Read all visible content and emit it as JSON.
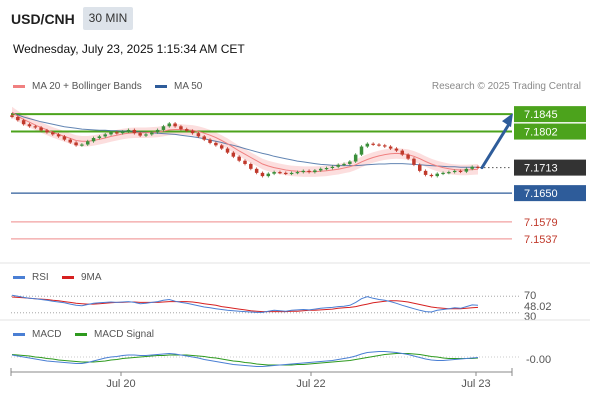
{
  "header": {
    "symbol": "USD/CNH",
    "timeframe": "30 MIN",
    "datetime": "Wednesday, July 23, 2025 1:15:34 AM CET"
  },
  "legend_main": {
    "ma20_label": "MA 20 + Bollinger Bands",
    "ma50_label": "MA 50",
    "ma20_color": "#f08080",
    "ma50_color": "#2e5c9a",
    "research": "Research © 2025 Trading Central"
  },
  "legend_rsi": {
    "rsi_label": "RSI",
    "ma_label": "9MA",
    "rsi_color": "#4a7fd4",
    "ma_color": "#d62020"
  },
  "legend_macd": {
    "macd_label": "MACD",
    "signal_label": "MACD Signal",
    "macd_color": "#4a7fd4",
    "signal_color": "#2e9a1e"
  },
  "colors": {
    "resistance": "#4ca31c",
    "support": "#2e5c9a",
    "weak_support": "#f2a0a0",
    "current": "#333333",
    "up_candle": "#3a8f3a",
    "down_candle": "#c0392b",
    "band_fill": "#fbd8d8"
  },
  "chart_data": [
    {
      "type": "candlestick",
      "name": "price",
      "y_range": [
        7.148,
        7.187
      ],
      "current_price": "7.1713",
      "levels": [
        {
          "value": 7.1845,
          "label": "7.1845",
          "kind": "resistance"
        },
        {
          "value": 7.1802,
          "label": "7.1802",
          "kind": "resistance"
        },
        {
          "value": 7.165,
          "label": "7.1650",
          "kind": "support"
        },
        {
          "value": 7.1579,
          "label": "7.1579",
          "kind": "weak"
        },
        {
          "value": 7.1537,
          "label": "7.1537",
          "kind": "weak"
        }
      ],
      "close": [
        7.1838,
        7.183,
        7.182,
        7.1815,
        7.1812,
        7.1805,
        7.18,
        7.1795,
        7.179,
        7.1782,
        7.1775,
        7.1768,
        7.177,
        7.1778,
        7.1786,
        7.179,
        7.1795,
        7.18,
        7.1798,
        7.1802,
        7.1806,
        7.1798,
        7.1792,
        7.1795,
        7.18,
        7.1806,
        7.1815,
        7.1822,
        7.1815,
        7.1808,
        7.1804,
        7.1798,
        7.179,
        7.1782,
        7.1774,
        7.1768,
        7.176,
        7.175,
        7.174,
        7.173,
        7.1722,
        7.171,
        7.17,
        7.1692,
        7.1698,
        7.1702,
        7.17,
        7.1698,
        7.17,
        7.1702,
        7.1705,
        7.1702,
        7.1706,
        7.171,
        7.1712,
        7.1715,
        7.172,
        7.1722,
        7.1728,
        7.1745,
        7.1765,
        7.1772,
        7.177,
        7.1768,
        7.1765,
        7.176,
        7.1755,
        7.1745,
        7.1735,
        7.172,
        7.1705,
        7.1695,
        7.1692,
        7.1698,
        7.17,
        7.1702,
        7.1705,
        7.1703,
        7.171,
        7.1715,
        7.1713
      ],
      "ma20": [
        7.185,
        7.184,
        7.1832,
        7.1825,
        7.1818,
        7.1812,
        7.1806,
        7.18,
        7.1795,
        7.179,
        7.1785,
        7.178,
        7.1778,
        7.1778,
        7.178,
        7.1783,
        7.1786,
        7.179,
        7.1793,
        7.1796,
        7.1798,
        7.1799,
        7.1799,
        7.1799,
        7.18,
        7.1801,
        7.1803,
        7.1806,
        7.1807,
        7.1807,
        7.1806,
        7.1805,
        7.1802,
        7.1798,
        7.1793,
        7.1787,
        7.178,
        7.1772,
        7.1763,
        7.1754,
        7.1746,
        7.1738,
        7.173,
        7.1722,
        7.1717,
        7.1713,
        7.171,
        7.1707,
        7.1705,
        7.1704,
        7.1703,
        7.1703,
        7.1703,
        7.1704,
        7.1705,
        7.1707,
        7.1709,
        7.1712,
        7.1715,
        7.172,
        7.1727,
        7.1733,
        7.1738,
        7.1742,
        7.1745,
        7.1747,
        7.1748,
        7.1747,
        7.1745,
        7.1741,
        7.1735,
        7.1728,
        7.1722,
        7.1717,
        7.1713,
        7.171,
        7.1708,
        7.1707,
        7.1707,
        7.1708,
        7.1709
      ],
      "ma50": [
        7.1848,
        7.1843,
        7.1838,
        7.1834,
        7.183,
        7.1826,
        7.1823,
        7.182,
        7.1817,
        7.1814,
        7.1812,
        7.181,
        7.1808,
        7.1807,
        7.1806,
        7.1805,
        7.1805,
        7.1804,
        7.1804,
        7.1803,
        7.1803,
        7.1802,
        7.1801,
        7.18,
        7.1799,
        7.1798,
        7.1797,
        7.1796,
        7.1795,
        7.1793,
        7.1791,
        7.1789,
        7.1787,
        7.1784,
        7.1781,
        7.1778,
        7.1775,
        7.1771,
        7.1768,
        7.1764,
        7.176,
        7.1756,
        7.1752,
        7.1748,
        7.1745,
        7.1741,
        7.1738,
        7.1735,
        7.1732,
        7.1729,
        7.1727,
        7.1725,
        7.1723,
        7.1721,
        7.172,
        7.1719,
        7.1718,
        7.1718,
        7.1718,
        7.1718,
        7.1719,
        7.172,
        7.1721,
        7.1722,
        7.1722,
        7.1723,
        7.1723,
        7.1723,
        7.1722,
        7.1721,
        7.172,
        7.1719,
        7.1718,
        7.1717,
        7.1716,
        7.1715,
        7.1715,
        7.1714,
        7.1714,
        7.1714,
        7.1714
      ]
    },
    {
      "type": "line",
      "name": "rsi",
      "y_range": [
        20,
        80
      ],
      "ticks": [
        "70",
        "30"
      ],
      "last_value": "48.02",
      "rsi": [
        72,
        70,
        67,
        65,
        64,
        62,
        60,
        58,
        56,
        54,
        51,
        48,
        47,
        50,
        53,
        54,
        55,
        56,
        55,
        56,
        57,
        55,
        52,
        53,
        55,
        57,
        60,
        62,
        58,
        55,
        53,
        50,
        47,
        44,
        42,
        40,
        38,
        36,
        35,
        34,
        33,
        32,
        31,
        31,
        34,
        36,
        35,
        34,
        36,
        37,
        38,
        37,
        39,
        41,
        42,
        43,
        45,
        46,
        48,
        55,
        64,
        69,
        65,
        62,
        60,
        57,
        53,
        48,
        44,
        40,
        36,
        33,
        32,
        36,
        38,
        40,
        42,
        41,
        45,
        49,
        48
      ],
      "ma9": [
        68,
        67,
        66,
        65,
        64,
        63,
        62,
        60,
        59,
        57,
        55,
        53,
        52,
        51,
        51,
        52,
        53,
        54,
        55,
        55,
        56,
        56,
        55,
        55,
        55,
        55,
        56,
        57,
        57,
        57,
        57,
        56,
        54,
        52,
        50,
        48,
        45,
        43,
        41,
        39,
        37,
        35,
        34,
        33,
        33,
        33,
        33,
        33,
        34,
        34,
        35,
        36,
        36,
        37,
        38,
        39,
        41,
        42,
        43,
        45,
        48,
        51,
        54,
        56,
        58,
        59,
        59,
        58,
        56,
        53,
        50,
        47,
        44,
        42,
        41,
        40,
        40,
        40,
        41,
        42,
        43
      ]
    },
    {
      "type": "line",
      "name": "macd",
      "y_range": [
        -0.0026,
        0.0026
      ],
      "ticks": [
        "-0.00"
      ],
      "macd": [
        0.0004,
        0.0002,
        0.0,
        -0.0002,
        -0.0004,
        -0.0006,
        -0.0008,
        -0.0009,
        -0.001,
        -0.0011,
        -0.0012,
        -0.0013,
        -0.0013,
        -0.0011,
        -0.0008,
        -0.0005,
        -0.0002,
        0.0,
        0.0001,
        0.0003,
        0.0004,
        0.0004,
        0.0003,
        0.0003,
        0.0004,
        0.0005,
        0.0006,
        0.0007,
        0.0006,
        0.0004,
        0.0002,
        0.0,
        -0.0002,
        -0.0005,
        -0.0007,
        -0.0009,
        -0.0011,
        -0.0013,
        -0.0015,
        -0.0016,
        -0.0017,
        -0.0018,
        -0.0019,
        -0.0019,
        -0.0018,
        -0.0017,
        -0.0016,
        -0.0015,
        -0.0014,
        -0.0013,
        -0.0012,
        -0.0011,
        -0.001,
        -0.0009,
        -0.0008,
        -0.0007,
        -0.0005,
        -0.0003,
        -0.0001,
        0.0002,
        0.0006,
        0.0009,
        0.001,
        0.0011,
        0.0011,
        0.001,
        0.0009,
        0.0007,
        0.0005,
        0.0002,
        -0.0001,
        -0.0004,
        -0.0006,
        -0.0007,
        -0.0007,
        -0.0006,
        -0.0005,
        -0.0004,
        -0.0003,
        -0.0002,
        -0.0001
      ],
      "signal": [
        0.0005,
        0.0004,
        0.0003,
        0.0002,
        0.0,
        -0.0001,
        -0.0003,
        -0.0004,
        -0.0006,
        -0.0007,
        -0.0008,
        -0.0009,
        -0.001,
        -0.001,
        -0.001,
        -0.0009,
        -0.0008,
        -0.0006,
        -0.0005,
        -0.0003,
        -0.0002,
        -0.0001,
        0.0,
        0.0001,
        0.0002,
        0.0003,
        0.0003,
        0.0004,
        0.0004,
        0.0004,
        0.0004,
        0.0003,
        0.0002,
        0.0001,
        -0.0001,
        -0.0002,
        -0.0004,
        -0.0006,
        -0.0008,
        -0.0009,
        -0.0011,
        -0.0012,
        -0.0014,
        -0.0015,
        -0.0016,
        -0.0016,
        -0.0016,
        -0.0016,
        -0.0016,
        -0.0015,
        -0.0015,
        -0.0014,
        -0.0013,
        -0.0012,
        -0.0011,
        -0.001,
        -0.0009,
        -0.0008,
        -0.0007,
        -0.0005,
        -0.0003,
        -0.0001,
        0.0001,
        0.0003,
        0.0005,
        0.0006,
        0.0007,
        0.0007,
        0.0007,
        0.0006,
        0.0005,
        0.0003,
        0.0001,
        0.0,
        -0.0002,
        -0.0003,
        -0.0003,
        -0.0003,
        -0.0003,
        -0.0003,
        -0.0002
      ]
    }
  ],
  "x_axis": {
    "ticks": [
      "Jul 20",
      "Jul 22",
      "Jul 23"
    ]
  }
}
